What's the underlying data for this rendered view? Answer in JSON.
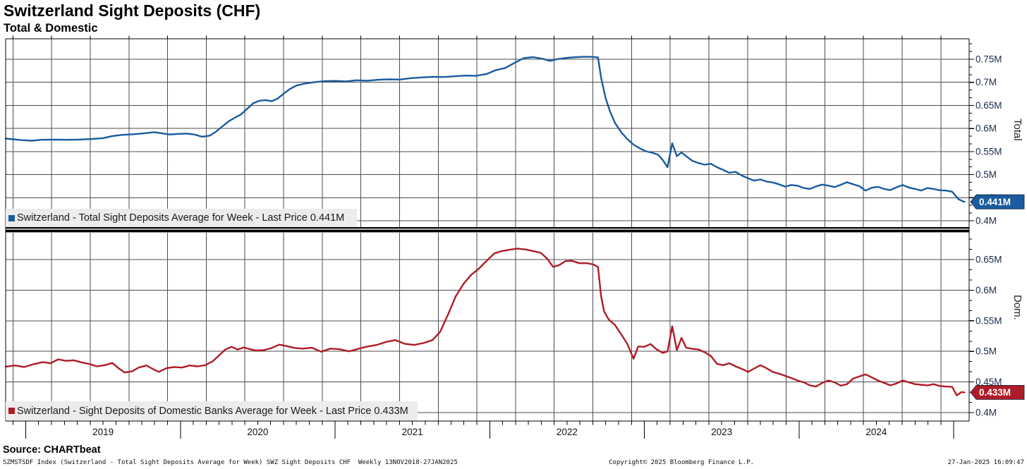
{
  "header": {
    "title": "Switzerland Sight Deposits (CHF)",
    "subtitle": "Total & Domestic"
  },
  "x_axis": {
    "t_start": 2018.87,
    "t_end": 2025.1,
    "years": [
      "2019",
      "2020",
      "2021",
      "2022",
      "2023",
      "2024"
    ]
  },
  "chart_data": [
    {
      "type": "line",
      "name": "Total",
      "axis_title": "Total",
      "legend": "Switzerland - Total Sight Deposits Average for Week - Last Price 0.441M",
      "last_price": 0.441,
      "last_price_label": "0.441M",
      "color": "#1a5c9e",
      "ylim": [
        0.3863,
        0.7943
      ],
      "y_ticks": [
        {
          "v": 0.4,
          "label": "0.4M"
        },
        {
          "v": 0.45,
          "label": "0.45M"
        },
        {
          "v": 0.5,
          "label": "0.5M"
        },
        {
          "v": 0.55,
          "label": "0.55M"
        },
        {
          "v": 0.6,
          "label": "0.6M"
        },
        {
          "v": 0.65,
          "label": "0.65M"
        },
        {
          "v": 0.7,
          "label": "0.7M"
        },
        {
          "v": 0.75,
          "label": "0.75M"
        }
      ],
      "points": [
        [
          2018.87,
          0.578
        ],
        [
          2018.92,
          0.5765
        ],
        [
          2018.98,
          0.5745
        ],
        [
          2019.04,
          0.5735
        ],
        [
          2019.1,
          0.5755
        ],
        [
          2019.18,
          0.576
        ],
        [
          2019.26,
          0.5755
        ],
        [
          2019.34,
          0.576
        ],
        [
          2019.42,
          0.577
        ],
        [
          2019.5,
          0.579
        ],
        [
          2019.56,
          0.5835
        ],
        [
          2019.62,
          0.586
        ],
        [
          2019.7,
          0.5875
        ],
        [
          2019.78,
          0.59
        ],
        [
          2019.83,
          0.592
        ],
        [
          2019.88,
          0.5895
        ],
        [
          2019.93,
          0.587
        ],
        [
          2019.98,
          0.588
        ],
        [
          2020.04,
          0.589
        ],
        [
          2020.09,
          0.587
        ],
        [
          2020.14,
          0.582
        ],
        [
          2020.19,
          0.5845
        ],
        [
          2020.23,
          0.593
        ],
        [
          2020.27,
          0.604
        ],
        [
          2020.31,
          0.615
        ],
        [
          2020.35,
          0.623
        ],
        [
          2020.39,
          0.63
        ],
        [
          2020.43,
          0.642
        ],
        [
          2020.47,
          0.6545
        ],
        [
          2020.51,
          0.66
        ],
        [
          2020.55,
          0.6615
        ],
        [
          2020.59,
          0.659
        ],
        [
          2020.63,
          0.665
        ],
        [
          2020.67,
          0.676
        ],
        [
          2020.71,
          0.686
        ],
        [
          2020.75,
          0.693
        ],
        [
          2020.8,
          0.697
        ],
        [
          2020.86,
          0.7
        ],
        [
          2020.93,
          0.7025
        ],
        [
          2021.0,
          0.703
        ],
        [
          2021.07,
          0.702
        ],
        [
          2021.14,
          0.7045
        ],
        [
          2021.21,
          0.7035
        ],
        [
          2021.28,
          0.7055
        ],
        [
          2021.35,
          0.7065
        ],
        [
          2021.42,
          0.706
        ],
        [
          2021.49,
          0.709
        ],
        [
          2021.56,
          0.7105
        ],
        [
          2021.63,
          0.712
        ],
        [
          2021.7,
          0.7115
        ],
        [
          2021.77,
          0.713
        ],
        [
          2021.84,
          0.7145
        ],
        [
          2021.91,
          0.714
        ],
        [
          2021.98,
          0.718
        ],
        [
          2022.04,
          0.7265
        ],
        [
          2022.1,
          0.731
        ],
        [
          2022.16,
          0.742
        ],
        [
          2022.22,
          0.7525
        ],
        [
          2022.28,
          0.7545
        ],
        [
          2022.34,
          0.751
        ],
        [
          2022.39,
          0.7465
        ],
        [
          2022.44,
          0.7505
        ],
        [
          2022.5,
          0.753
        ],
        [
          2022.56,
          0.7545
        ],
        [
          2022.62,
          0.7555
        ],
        [
          2022.67,
          0.755
        ],
        [
          2022.7,
          0.754
        ],
        [
          2022.72,
          0.71
        ],
        [
          2022.75,
          0.665
        ],
        [
          2022.78,
          0.635
        ],
        [
          2022.81,
          0.612
        ],
        [
          2022.85,
          0.592
        ],
        [
          2022.89,
          0.577
        ],
        [
          2022.93,
          0.565
        ],
        [
          2022.97,
          0.557
        ],
        [
          2023.01,
          0.5505
        ],
        [
          2023.05,
          0.5475
        ],
        [
          2023.09,
          0.543
        ],
        [
          2023.12,
          0.531
        ],
        [
          2023.15,
          0.516
        ],
        [
          2023.18,
          0.568
        ],
        [
          2023.21,
          0.54
        ],
        [
          2023.24,
          0.548
        ],
        [
          2023.27,
          0.54
        ],
        [
          2023.31,
          0.53
        ],
        [
          2023.35,
          0.525
        ],
        [
          2023.39,
          0.5215
        ],
        [
          2023.43,
          0.5235
        ],
        [
          2023.47,
          0.516
        ],
        [
          2023.51,
          0.51
        ],
        [
          2023.55,
          0.504
        ],
        [
          2023.59,
          0.506
        ],
        [
          2023.63,
          0.498
        ],
        [
          2023.67,
          0.492
        ],
        [
          2023.71,
          0.487
        ],
        [
          2023.75,
          0.4895
        ],
        [
          2023.79,
          0.485
        ],
        [
          2023.83,
          0.483
        ],
        [
          2023.87,
          0.479
        ],
        [
          2023.91,
          0.474
        ],
        [
          2023.95,
          0.4775
        ],
        [
          2023.99,
          0.476
        ],
        [
          2024.03,
          0.471
        ],
        [
          2024.07,
          0.469
        ],
        [
          2024.11,
          0.4745
        ],
        [
          2024.15,
          0.4785
        ],
        [
          2024.19,
          0.476
        ],
        [
          2024.23,
          0.473
        ],
        [
          2024.27,
          0.478
        ],
        [
          2024.31,
          0.4835
        ],
        [
          2024.35,
          0.479
        ],
        [
          2024.39,
          0.475
        ],
        [
          2024.43,
          0.4655
        ],
        [
          2024.47,
          0.4715
        ],
        [
          2024.51,
          0.4735
        ],
        [
          2024.55,
          0.469
        ],
        [
          2024.59,
          0.4665
        ],
        [
          2024.63,
          0.4725
        ],
        [
          2024.67,
          0.4775
        ],
        [
          2024.71,
          0.472
        ],
        [
          2024.75,
          0.469
        ],
        [
          2024.79,
          0.4655
        ],
        [
          2024.83,
          0.471
        ],
        [
          2024.87,
          0.469
        ],
        [
          2024.91,
          0.466
        ],
        [
          2024.95,
          0.4655
        ],
        [
          2024.99,
          0.463
        ],
        [
          2025.03,
          0.447
        ],
        [
          2025.06,
          0.442
        ],
        [
          2025.07,
          0.441
        ]
      ]
    },
    {
      "type": "line",
      "name": "Domestic",
      "axis_title": "Dom.",
      "legend": "Switzerland - Sight Deposits of Domestic Banks Average for Week - Last Price 0.433M",
      "last_price": 0.433,
      "last_price_label": "0.433M",
      "color": "#ae1c27",
      "ylim": [
        0.3862,
        0.6938
      ],
      "y_ticks": [
        {
          "v": 0.4,
          "label": "0.4M"
        },
        {
          "v": 0.45,
          "label": "0.45M"
        },
        {
          "v": 0.5,
          "label": "0.5M"
        },
        {
          "v": 0.55,
          "label": "0.55M"
        },
        {
          "v": 0.6,
          "label": "0.6M"
        },
        {
          "v": 0.65,
          "label": "0.65M"
        }
      ],
      "points": [
        [
          2018.87,
          0.475
        ],
        [
          2018.93,
          0.477
        ],
        [
          2018.99,
          0.4745
        ],
        [
          2019.05,
          0.479
        ],
        [
          2019.11,
          0.4825
        ],
        [
          2019.16,
          0.4805
        ],
        [
          2019.21,
          0.487
        ],
        [
          2019.26,
          0.4845
        ],
        [
          2019.31,
          0.4855
        ],
        [
          2019.36,
          0.482
        ],
        [
          2019.41,
          0.4795
        ],
        [
          2019.46,
          0.4755
        ],
        [
          2019.51,
          0.4775
        ],
        [
          2019.56,
          0.481
        ],
        [
          2019.6,
          0.4725
        ],
        [
          2019.64,
          0.4655
        ],
        [
          2019.69,
          0.4675
        ],
        [
          2019.73,
          0.4735
        ],
        [
          2019.78,
          0.477
        ],
        [
          2019.82,
          0.4715
        ],
        [
          2019.86,
          0.4665
        ],
        [
          2019.91,
          0.4725
        ],
        [
          2019.96,
          0.4745
        ],
        [
          2020.01,
          0.4735
        ],
        [
          2020.06,
          0.477
        ],
        [
          2020.11,
          0.4755
        ],
        [
          2020.16,
          0.4775
        ],
        [
          2020.21,
          0.484
        ],
        [
          2020.25,
          0.4935
        ],
        [
          2020.29,
          0.503
        ],
        [
          2020.33,
          0.5075
        ],
        [
          2020.37,
          0.503
        ],
        [
          2020.41,
          0.5065
        ],
        [
          2020.45,
          0.5035
        ],
        [
          2020.49,
          0.5015
        ],
        [
          2020.54,
          0.502
        ],
        [
          2020.59,
          0.5055
        ],
        [
          2020.64,
          0.511
        ],
        [
          2020.69,
          0.5085
        ],
        [
          2020.74,
          0.5055
        ],
        [
          2020.79,
          0.5045
        ],
        [
          2020.85,
          0.506
        ],
        [
          2020.91,
          0.4995
        ],
        [
          2020.97,
          0.5045
        ],
        [
          2021.03,
          0.5035
        ],
        [
          2021.09,
          0.5
        ],
        [
          2021.15,
          0.504
        ],
        [
          2021.21,
          0.508
        ],
        [
          2021.27,
          0.5105
        ],
        [
          2021.33,
          0.5155
        ],
        [
          2021.39,
          0.5185
        ],
        [
          2021.45,
          0.5125
        ],
        [
          2021.51,
          0.5105
        ],
        [
          2021.57,
          0.5135
        ],
        [
          2021.63,
          0.5185
        ],
        [
          2021.68,
          0.532
        ],
        [
          2021.73,
          0.56
        ],
        [
          2021.78,
          0.59
        ],
        [
          2021.83,
          0.61
        ],
        [
          2021.88,
          0.625
        ],
        [
          2021.93,
          0.635
        ],
        [
          2021.98,
          0.648
        ],
        [
          2022.03,
          0.66
        ],
        [
          2022.08,
          0.664
        ],
        [
          2022.13,
          0.666
        ],
        [
          2022.18,
          0.668
        ],
        [
          2022.23,
          0.6665
        ],
        [
          2022.28,
          0.664
        ],
        [
          2022.33,
          0.661
        ],
        [
          2022.37,
          0.652
        ],
        [
          2022.41,
          0.638
        ],
        [
          2022.45,
          0.641
        ],
        [
          2022.49,
          0.6475
        ],
        [
          2022.53,
          0.648
        ],
        [
          2022.58,
          0.644
        ],
        [
          2022.63,
          0.644
        ],
        [
          2022.67,
          0.642
        ],
        [
          2022.7,
          0.638
        ],
        [
          2022.72,
          0.59
        ],
        [
          2022.74,
          0.565
        ],
        [
          2022.77,
          0.552
        ],
        [
          2022.81,
          0.543
        ],
        [
          2022.85,
          0.528
        ],
        [
          2022.89,
          0.512
        ],
        [
          2022.93,
          0.488
        ],
        [
          2022.96,
          0.508
        ],
        [
          2023.0,
          0.5075
        ],
        [
          2023.04,
          0.512
        ],
        [
          2023.08,
          0.503
        ],
        [
          2023.12,
          0.4975
        ],
        [
          2023.15,
          0.5
        ],
        [
          2023.18,
          0.541
        ],
        [
          2023.21,
          0.502
        ],
        [
          2023.24,
          0.522
        ],
        [
          2023.27,
          0.506
        ],
        [
          2023.31,
          0.504
        ],
        [
          2023.35,
          0.503
        ],
        [
          2023.39,
          0.4985
        ],
        [
          2023.43,
          0.4925
        ],
        [
          2023.47,
          0.4795
        ],
        [
          2023.51,
          0.4775
        ],
        [
          2023.55,
          0.4805
        ],
        [
          2023.59,
          0.4755
        ],
        [
          2023.63,
          0.4715
        ],
        [
          2023.67,
          0.4665
        ],
        [
          2023.71,
          0.472
        ],
        [
          2023.75,
          0.4775
        ],
        [
          2023.79,
          0.4725
        ],
        [
          2023.83,
          0.4665
        ],
        [
          2023.87,
          0.4635
        ],
        [
          2023.91,
          0.46
        ],
        [
          2023.95,
          0.4565
        ],
        [
          2023.99,
          0.4525
        ],
        [
          2024.03,
          0.4495
        ],
        [
          2024.07,
          0.4445
        ],
        [
          2024.11,
          0.4425
        ],
        [
          2024.15,
          0.4485
        ],
        [
          2024.19,
          0.4525
        ],
        [
          2024.23,
          0.4495
        ],
        [
          2024.27,
          0.444
        ],
        [
          2024.31,
          0.4465
        ],
        [
          2024.35,
          0.4555
        ],
        [
          2024.39,
          0.459
        ],
        [
          2024.43,
          0.4625
        ],
        [
          2024.47,
          0.4575
        ],
        [
          2024.51,
          0.4525
        ],
        [
          2024.55,
          0.4485
        ],
        [
          2024.59,
          0.4445
        ],
        [
          2024.63,
          0.4475
        ],
        [
          2024.67,
          0.4525
        ],
        [
          2024.71,
          0.4495
        ],
        [
          2024.75,
          0.4465
        ],
        [
          2024.79,
          0.4455
        ],
        [
          2024.83,
          0.4445
        ],
        [
          2024.87,
          0.4465
        ],
        [
          2024.91,
          0.4435
        ],
        [
          2024.95,
          0.4425
        ],
        [
          2024.99,
          0.442
        ],
        [
          2025.02,
          0.428
        ],
        [
          2025.05,
          0.4335
        ],
        [
          2025.07,
          0.433
        ]
      ]
    }
  ],
  "style": {
    "grid_color": "#4c4c4c",
    "spine_color": "#000000",
    "tick_label_color": "#1b2a4a",
    "legend_bg": "#ececec"
  },
  "footer": {
    "source": "Source: CHARTbeat",
    "index_line": "SZMSTSDF Index (Switzerland - Total Sight Deposits Average for Week) SWZ Sight Deposits CHF  Weekly 13NOV2018-27JAN2025",
    "copyright": "Copyright© 2025 Bloomberg Finance L.P.",
    "datetime": "27-Jan-2025 16:09:47"
  }
}
